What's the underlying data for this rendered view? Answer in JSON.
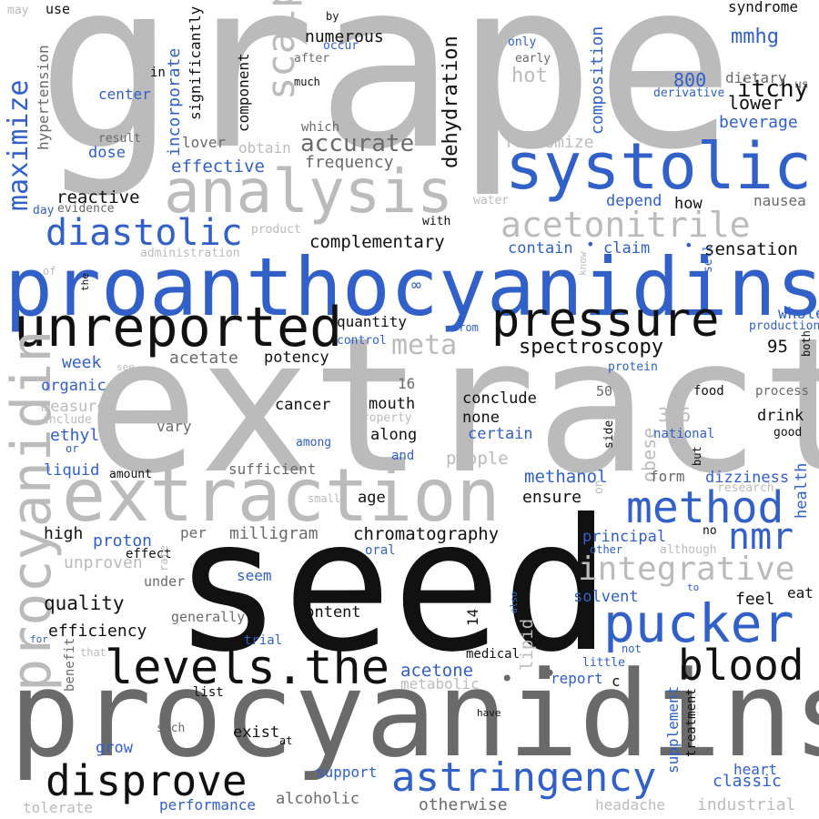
{
  "colors": {
    "black": "#111111",
    "blue": "#3060c8",
    "lightgray": "#bbbbbb",
    "midgray": "#6a6a6a"
  },
  "words": [
    {
      "text": "grape",
      "color": "lightgray"
    },
    {
      "text": "extract",
      "color": "lightgray"
    },
    {
      "text": "seed",
      "color": "black"
    },
    {
      "text": "procyanidins",
      "color": "midgray"
    },
    {
      "text": "proanthocyanidins",
      "color": "blue"
    },
    {
      "text": "extraction",
      "color": "lightgray"
    },
    {
      "text": "systolic",
      "color": "blue"
    },
    {
      "text": "analysis",
      "color": "lightgray"
    },
    {
      "text": "unreported",
      "color": "black"
    },
    {
      "text": "pressure",
      "color": "black"
    },
    {
      "text": "procyanidin",
      "color": "lightgray"
    },
    {
      "text": "diastolic",
      "color": "blue"
    },
    {
      "text": "acetonitrile",
      "color": "lightgray"
    },
    {
      "text": "method",
      "color": "blue"
    },
    {
      "text": "pucker",
      "color": "blue"
    },
    {
      "text": "levels.the",
      "color": "black"
    },
    {
      "text": "blood",
      "color": "black"
    },
    {
      "text": "disprove",
      "color": "black"
    },
    {
      "text": "astringency",
      "color": "blue"
    },
    {
      "text": "integrative",
      "color": "lightgray"
    },
    {
      "text": "nmr",
      "color": "blue"
    },
    {
      "text": "maximize",
      "color": "blue"
    },
    {
      "text": "scalp",
      "color": "lightgray"
    },
    {
      "text": "meta",
      "color": "lightgray"
    },
    {
      "text": "spectroscopy",
      "color": "black"
    },
    {
      "text": "accurate",
      "color": "midgray"
    },
    {
      "text": "dehydration",
      "color": "black"
    },
    {
      "text": "itchy",
      "color": "black"
    },
    {
      "text": "mmhg",
      "color": "blue"
    },
    {
      "text": "syndrome",
      "color": "black"
    },
    {
      "text": "composition",
      "color": "blue"
    },
    {
      "text": "significantly",
      "color": "black"
    },
    {
      "text": "incorporate",
      "color": "blue"
    },
    {
      "text": "component",
      "color": "black"
    },
    {
      "text": "numerous",
      "color": "black"
    },
    {
      "text": "complementary",
      "color": "black"
    },
    {
      "text": "reactive",
      "color": "black"
    },
    {
      "text": "effective",
      "color": "blue"
    },
    {
      "text": "frequency",
      "color": "midgray"
    },
    {
      "text": "randomize",
      "color": "lightgray"
    },
    {
      "text": "beverage",
      "color": "blue"
    },
    {
      "text": "lower",
      "color": "black"
    },
    {
      "text": "dietary",
      "color": "midgray"
    },
    {
      "text": "800",
      "color": "blue"
    },
    {
      "text": "sensation",
      "color": "black"
    },
    {
      "text": "claim",
      "color": "blue"
    },
    {
      "text": "contain",
      "color": "blue"
    },
    {
      "text": "whole",
      "color": "blue"
    },
    {
      "text": "quantity",
      "color": "black"
    },
    {
      "text": "potency",
      "color": "black"
    },
    {
      "text": "acetate",
      "color": "midgray"
    },
    {
      "text": "week",
      "color": "blue"
    },
    {
      "text": "organic",
      "color": "blue"
    },
    {
      "text": "measure",
      "color": "lightgray"
    },
    {
      "text": "ethyl",
      "color": "blue"
    },
    {
      "text": "liquid",
      "color": "blue"
    },
    {
      "text": "cancer",
      "color": "black"
    },
    {
      "text": "mouth",
      "color": "black"
    },
    {
      "text": "conclude",
      "color": "black"
    },
    {
      "text": "none",
      "color": "black"
    },
    {
      "text": "along",
      "color": "black"
    },
    {
      "text": "certain",
      "color": "blue"
    },
    {
      "text": "people",
      "color": "lightgray"
    },
    {
      "text": "3-6",
      "color": "lightgray"
    },
    {
      "text": "obese",
      "color": "lightgray"
    },
    {
      "text": "drink",
      "color": "black"
    },
    {
      "text": "health",
      "color": "blue"
    },
    {
      "text": "dizziness",
      "color": "blue"
    },
    {
      "text": "methanol",
      "color": "blue"
    },
    {
      "text": "ensure",
      "color": "black"
    },
    {
      "text": "form",
      "color": "midgray"
    },
    {
      "text": "sufficient",
      "color": "midgray"
    },
    {
      "text": "milligram",
      "color": "midgray"
    },
    {
      "text": "chromatography",
      "color": "black"
    },
    {
      "text": "proton",
      "color": "blue"
    },
    {
      "text": "unproven",
      "color": "lightgray"
    },
    {
      "text": "principal",
      "color": "blue"
    },
    {
      "text": "quality",
      "color": "black"
    },
    {
      "text": "efficiency",
      "color": "black"
    },
    {
      "text": "content",
      "color": "black"
    },
    {
      "text": "solvent",
      "color": "blue"
    },
    {
      "text": "feel",
      "color": "black"
    },
    {
      "text": "acetone",
      "color": "blue"
    },
    {
      "text": "lipid",
      "color": "lightgray"
    },
    {
      "text": "report",
      "color": "blue"
    },
    {
      "text": "metabolic",
      "color": "lightgray"
    },
    {
      "text": "supplement",
      "color": "blue"
    },
    {
      "text": "treatment",
      "color": "black"
    },
    {
      "text": "classic",
      "color": "blue"
    },
    {
      "text": "heart",
      "color": "blue"
    },
    {
      "text": "alcoholic",
      "color": "midgray"
    },
    {
      "text": "otherwise",
      "color": "midgray"
    },
    {
      "text": "industrial",
      "color": "lightgray"
    },
    {
      "text": "headache",
      "color": "lightgray"
    },
    {
      "text": "performance",
      "color": "blue"
    },
    {
      "text": "support",
      "color": "blue"
    },
    {
      "text": "tolerate",
      "color": "lightgray"
    },
    {
      "text": "grow",
      "color": "blue"
    },
    {
      "text": "exist",
      "color": "black"
    },
    {
      "text": "high",
      "color": "black"
    },
    {
      "text": "per",
      "color": "midgray"
    },
    {
      "text": "age",
      "color": "black"
    },
    {
      "text": "seem",
      "color": "blue"
    },
    {
      "text": "95",
      "color": "black"
    },
    {
      "text": "16",
      "color": "midgray"
    },
    {
      "text": "50",
      "color": "midgray"
    },
    {
      "text": "14",
      "color": "black"
    },
    {
      "text": "c",
      "color": "black"
    },
    {
      "text": "hot",
      "color": "lightgray"
    },
    {
      "text": "depend",
      "color": "blue"
    },
    {
      "text": "how",
      "color": "black"
    },
    {
      "text": "nausea",
      "color": "midgray"
    },
    {
      "text": "dose",
      "color": "blue"
    },
    {
      "text": "center",
      "color": "blue"
    },
    {
      "text": "lover",
      "color": "midgray"
    },
    {
      "text": "obtain",
      "color": "lightgray"
    },
    {
      "text": "hypertension",
      "color": "midgray"
    },
    {
      "text": "vary",
      "color": "midgray"
    },
    {
      "text": "amount",
      "color": "black"
    },
    {
      "text": "medical",
      "color": "black"
    },
    {
      "text": "generally",
      "color": "midgray"
    },
    {
      "text": "trial",
      "color": "blue"
    },
    {
      "text": "benefit",
      "color": "midgray"
    },
    {
      "text": "list",
      "color": "black"
    },
    {
      "text": "under",
      "color": "midgray"
    },
    {
      "text": "effect",
      "color": "black"
    },
    {
      "text": "oral",
      "color": "blue"
    },
    {
      "text": "food",
      "color": "black"
    },
    {
      "text": "process",
      "color": "midgray"
    },
    {
      "text": "national",
      "color": "blue"
    },
    {
      "text": "good",
      "color": "black"
    },
    {
      "text": "side",
      "color": "black"
    },
    {
      "text": "eat",
      "color": "black"
    },
    {
      "text": "research",
      "color": "lightgray"
    },
    {
      "text": "no",
      "color": "black"
    },
    {
      "text": "although",
      "color": "lightgray"
    },
    {
      "text": "other",
      "color": "blue"
    },
    {
      "text": "little",
      "color": "blue"
    },
    {
      "text": "not",
      "color": "blue"
    },
    {
      "text": "production",
      "color": "blue"
    },
    {
      "text": "protein",
      "color": "blue"
    },
    {
      "text": "both",
      "color": "black"
    },
    {
      "text": "derivative",
      "color": "blue"
    },
    {
      "text": "us",
      "color": "midgray"
    },
    {
      "text": "low",
      "color": "lightgray"
    },
    {
      "text": "early",
      "color": "midgray"
    },
    {
      "text": "only",
      "color": "blue"
    },
    {
      "text": "after",
      "color": "midgray"
    },
    {
      "text": "occur",
      "color": "blue"
    },
    {
      "text": "by",
      "color": "black"
    },
    {
      "text": "much",
      "color": "black"
    },
    {
      "text": "which",
      "color": "midgray"
    },
    {
      "text": "result",
      "color": "midgray"
    },
    {
      "text": "in",
      "color": "black"
    },
    {
      "text": "use",
      "color": "black"
    },
    {
      "text": "may",
      "color": "lightgray"
    },
    {
      "text": "day",
      "color": "blue"
    },
    {
      "text": "evidence",
      "color": "midgray"
    },
    {
      "text": "product",
      "color": "lightgray"
    },
    {
      "text": "administration",
      "color": "lightgray"
    },
    {
      "text": "with",
      "color": "black"
    },
    {
      "text": "water",
      "color": "lightgray"
    },
    {
      "text": "of",
      "color": "lightgray"
    },
    {
      "text": "the",
      "color": "black"
    },
    {
      "text": "from",
      "color": "blue"
    },
    {
      "text": "control",
      "color": "blue"
    },
    {
      "text": "see",
      "color": "lightgray"
    },
    {
      "text": "include",
      "color": "lightgray"
    },
    {
      "text": "property",
      "color": "lightgray"
    },
    {
      "text": "among",
      "color": "blue"
    },
    {
      "text": "and",
      "color": "blue"
    },
    {
      "text": "or",
      "color": "blue"
    },
    {
      "text": "small",
      "color": "lightgray"
    },
    {
      "text": "rate",
      "color": "lightgray"
    },
    {
      "text": "for",
      "color": "blue"
    },
    {
      "text": "that",
      "color": "lightgray"
    },
    {
      "text": "such",
      "color": "midgray"
    },
    {
      "text": "at",
      "color": "black"
    },
    {
      "text": "have",
      "color": "black"
    },
    {
      "text": "also",
      "color": "blue"
    },
    {
      "text": "know",
      "color": "lightgray"
    },
    {
      "text": "sell",
      "color": "blue"
    },
    {
      "text": "to",
      "color": "blue"
    },
    {
      "text": "on",
      "color": "lightgray"
    },
    {
      "text": "but",
      "color": "black"
    },
    {
      "text": "∞",
      "color": "blue"
    },
    {
      "text": "•",
      "color": "blue"
    },
    {
      "text": "•",
      "color": "blue"
    },
    {
      "text": "•",
      "color": "midgray"
    },
    {
      "text": "•",
      "color": "midgray"
    }
  ]
}
